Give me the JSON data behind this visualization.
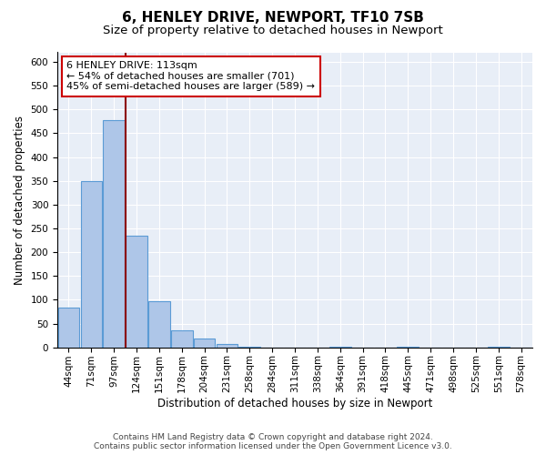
{
  "title": "6, HENLEY DRIVE, NEWPORT, TF10 7SB",
  "subtitle": "Size of property relative to detached houses in Newport",
  "xlabel": "Distribution of detached houses by size in Newport",
  "ylabel": "Number of detached properties",
  "bin_labels": [
    "44sqm",
    "71sqm",
    "97sqm",
    "124sqm",
    "151sqm",
    "178sqm",
    "204sqm",
    "231sqm",
    "258sqm",
    "284sqm",
    "311sqm",
    "338sqm",
    "364sqm",
    "391sqm",
    "418sqm",
    "445sqm",
    "471sqm",
    "498sqm",
    "525sqm",
    "551sqm",
    "578sqm"
  ],
  "bar_values": [
    83,
    350,
    478,
    235,
    97,
    35,
    18,
    7,
    2,
    0,
    0,
    0,
    2,
    0,
    0,
    1,
    0,
    0,
    0,
    1,
    0
  ],
  "bar_color": "#aec6e8",
  "bar_edge_color": "#5b9bd5",
  "vline_color": "#8b0000",
  "annotation_line1": "6 HENLEY DRIVE: 113sqm",
  "annotation_line2": "← 54% of detached houses are smaller (701)",
  "annotation_line3": "45% of semi-detached houses are larger (589) →",
  "annotation_box_color": "#ffffff",
  "annotation_box_edge_color": "#cc0000",
  "ylim": [
    0,
    620
  ],
  "yticks": [
    0,
    50,
    100,
    150,
    200,
    250,
    300,
    350,
    400,
    450,
    500,
    550,
    600
  ],
  "bg_color": "#e8eef7",
  "footer_line1": "Contains HM Land Registry data © Crown copyright and database right 2024.",
  "footer_line2": "Contains public sector information licensed under the Open Government Licence v3.0.",
  "title_fontsize": 11,
  "subtitle_fontsize": 9.5,
  "axis_label_fontsize": 8.5,
  "tick_fontsize": 7.5,
  "annotation_fontsize": 8,
  "footer_fontsize": 6.5,
  "vline_x": 2.5
}
